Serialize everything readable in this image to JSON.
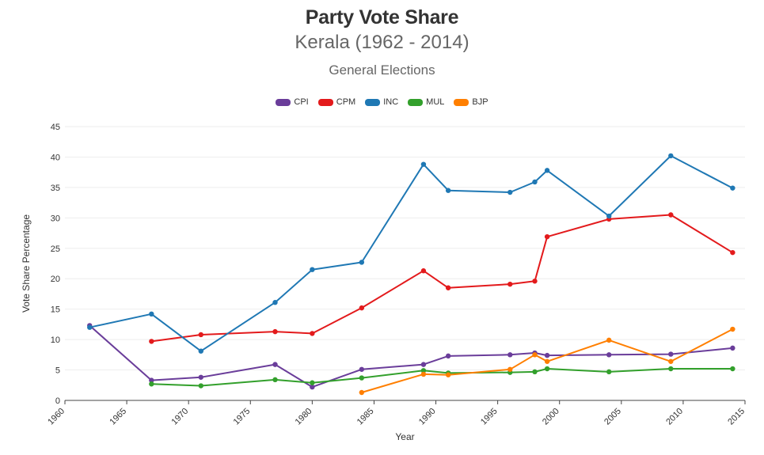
{
  "chart_data": {
    "type": "line",
    "title": "Party Vote Share",
    "subtitle": "Kerala (1962 - 2014)",
    "subsubtitle": "General Elections",
    "xlabel": "Year",
    "ylabel": "Vote Share Percentage",
    "xlim": [
      1960,
      2015
    ],
    "ylim": [
      0,
      45
    ],
    "xticks": [
      1960,
      1965,
      1970,
      1975,
      1980,
      1985,
      1990,
      1995,
      2000,
      2005,
      2010,
      2015
    ],
    "yticks": [
      0,
      5,
      10,
      15,
      20,
      25,
      30,
      35,
      40,
      45
    ],
    "grid": true,
    "legend_position": "top-center",
    "series": [
      {
        "name": "CPI",
        "color": "#6a3d9a",
        "points": [
          [
            1962,
            12.3
          ],
          [
            1967,
            3.3
          ],
          [
            1971,
            3.8
          ],
          [
            1977,
            5.9
          ],
          [
            1980,
            2.2
          ],
          [
            1984,
            5.1
          ],
          [
            1989,
            5.9
          ],
          [
            1991,
            7.3
          ],
          [
            1996,
            7.5
          ],
          [
            1998,
            7.8
          ],
          [
            1999,
            7.4
          ],
          [
            2004,
            7.5
          ],
          [
            2009,
            7.6
          ],
          [
            2014,
            8.6
          ]
        ]
      },
      {
        "name": "CPM",
        "color": "#e31a1c",
        "points": [
          [
            1967,
            9.7
          ],
          [
            1971,
            10.8
          ],
          [
            1977,
            11.3
          ],
          [
            1980,
            11.0
          ],
          [
            1984,
            15.2
          ],
          [
            1989,
            21.3
          ],
          [
            1991,
            18.5
          ],
          [
            1996,
            19.1
          ],
          [
            1998,
            19.6
          ],
          [
            1999,
            26.9
          ],
          [
            2004,
            29.8
          ],
          [
            2009,
            30.5
          ],
          [
            2014,
            24.3
          ]
        ]
      },
      {
        "name": "INC",
        "color": "#1f78b4",
        "points": [
          [
            1962,
            12.0
          ],
          [
            1967,
            14.2
          ],
          [
            1971,
            8.1
          ],
          [
            1977,
            16.1
          ],
          [
            1980,
            21.5
          ],
          [
            1984,
            22.7
          ],
          [
            1989,
            38.8
          ],
          [
            1991,
            34.5
          ],
          [
            1996,
            34.2
          ],
          [
            1998,
            35.9
          ],
          [
            1999,
            37.8
          ],
          [
            2004,
            30.3
          ],
          [
            2009,
            40.2
          ],
          [
            2014,
            34.9
          ]
        ]
      },
      {
        "name": "MUL",
        "color": "#33a02c",
        "points": [
          [
            1967,
            2.7
          ],
          [
            1971,
            2.4
          ],
          [
            1977,
            3.4
          ],
          [
            1980,
            2.9
          ],
          [
            1984,
            3.7
          ],
          [
            1989,
            4.9
          ],
          [
            1991,
            4.5
          ],
          [
            1996,
            4.6
          ],
          [
            1998,
            4.7
          ],
          [
            1999,
            5.2
          ],
          [
            2004,
            4.7
          ],
          [
            2009,
            5.2
          ],
          [
            2014,
            5.2
          ]
        ]
      },
      {
        "name": "BJP",
        "color": "#ff7f00",
        "points": [
          [
            1984,
            1.3
          ],
          [
            1989,
            4.3
          ],
          [
            1991,
            4.2
          ],
          [
            1996,
            5.1
          ],
          [
            1998,
            7.5
          ],
          [
            1999,
            6.4
          ],
          [
            2004,
            9.9
          ],
          [
            2009,
            6.4
          ],
          [
            2014,
            11.7
          ]
        ]
      }
    ]
  }
}
